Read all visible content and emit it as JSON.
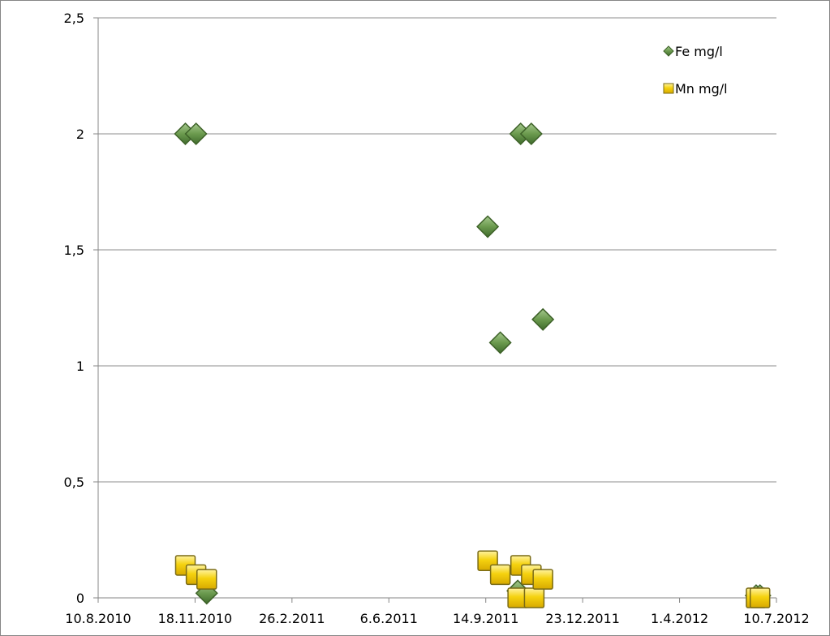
{
  "chart_data": {
    "type": "scatter",
    "title": "",
    "xlabel": "",
    "ylabel": "",
    "xlim": [
      "2010-08-10",
      "2012-07-10"
    ],
    "ylim": [
      0,
      2.5
    ],
    "x_ticks": [
      "10.8.2010",
      "18.11.2010",
      "26.2.2011",
      "6.6.2011",
      "14.9.2011",
      "23.12.2011",
      "1.4.2012",
      "10.7.2012"
    ],
    "y_ticks": [
      "0",
      "0,5",
      "1",
      "1,5",
      "2",
      "2,5"
    ],
    "grid": "horizontal",
    "legend_position": "top-right",
    "series": [
      {
        "name": "Fe mg/l",
        "marker": "diamond",
        "color": "#6b9a4e",
        "points": [
          {
            "x": "2010-11-08",
            "y": 2.0
          },
          {
            "x": "2010-11-19",
            "y": 2.0
          },
          {
            "x": "2010-11-30",
            "y": 0.02
          },
          {
            "x": "2011-09-16",
            "y": 1.6
          },
          {
            "x": "2011-09-29",
            "y": 1.1
          },
          {
            "x": "2011-10-17",
            "y": 0.03
          },
          {
            "x": "2011-10-20",
            "y": 2.0
          },
          {
            "x": "2011-10-31",
            "y": 2.0
          },
          {
            "x": "2011-11-12",
            "y": 1.2
          },
          {
            "x": "2012-06-19",
            "y": 0.01
          },
          {
            "x": "2012-06-23",
            "y": 0.01
          }
        ]
      },
      {
        "name": "Mn mg/l",
        "marker": "square",
        "color": "#f2cc0c",
        "points": [
          {
            "x": "2010-11-08",
            "y": 0.14
          },
          {
            "x": "2010-11-19",
            "y": 0.1
          },
          {
            "x": "2010-11-30",
            "y": 0.08
          },
          {
            "x": "2011-09-16",
            "y": 0.16
          },
          {
            "x": "2011-09-29",
            "y": 0.1
          },
          {
            "x": "2011-10-17",
            "y": 0.0
          },
          {
            "x": "2011-10-20",
            "y": 0.14
          },
          {
            "x": "2011-10-31",
            "y": 0.1
          },
          {
            "x": "2011-11-03",
            "y": 0.0
          },
          {
            "x": "2011-11-12",
            "y": 0.08
          },
          {
            "x": "2012-06-19",
            "y": 0.0
          },
          {
            "x": "2012-06-23",
            "y": 0.0
          }
        ]
      }
    ]
  }
}
